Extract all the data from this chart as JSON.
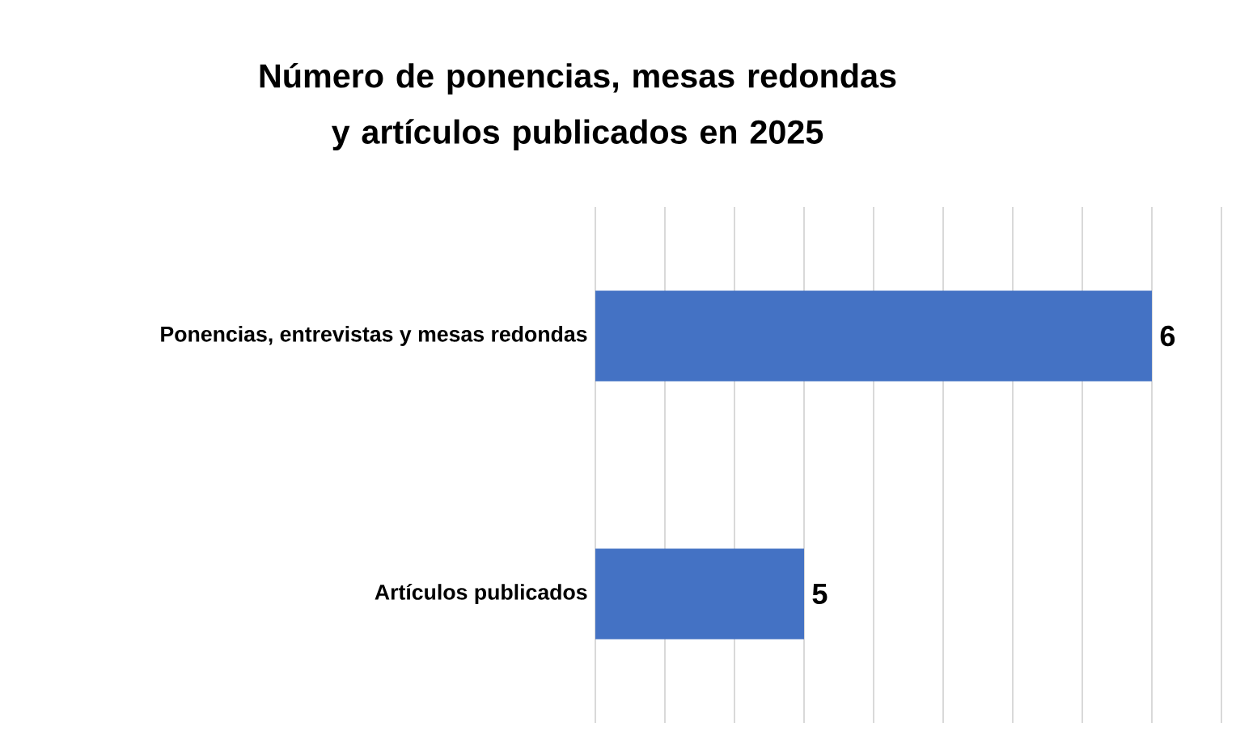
{
  "chart_data": {
    "type": "bar",
    "orientation": "horizontal",
    "title": "Número de ponencias, mesas redondas y artículos publicados en 2025",
    "categories": [
      "Ponencias, entrevistas y mesas redondas",
      "Artículos publicados"
    ],
    "values": [
      6,
      5
    ],
    "value_labels": [
      "6",
      "5"
    ],
    "color": "#4472c4",
    "xlim": [
      4.4,
      6.2
    ],
    "xticks": [
      {
        "value": 4.4,
        "label": null
      },
      {
        "value": 4.6,
        "label": null
      },
      {
        "value": 4.8,
        "label": null
      },
      {
        "value": 5.0,
        "label": null
      },
      {
        "value": 5.2,
        "label": null
      },
      {
        "value": 5.4,
        "label": null
      },
      {
        "value": 5.6,
        "label": null
      },
      {
        "value": 5.8,
        "label": null
      },
      {
        "value": 6.0,
        "label": null
      },
      {
        "value": 6.2,
        "label": null
      }
    ],
    "tick_labels": "y",
    "grid": "x"
  }
}
